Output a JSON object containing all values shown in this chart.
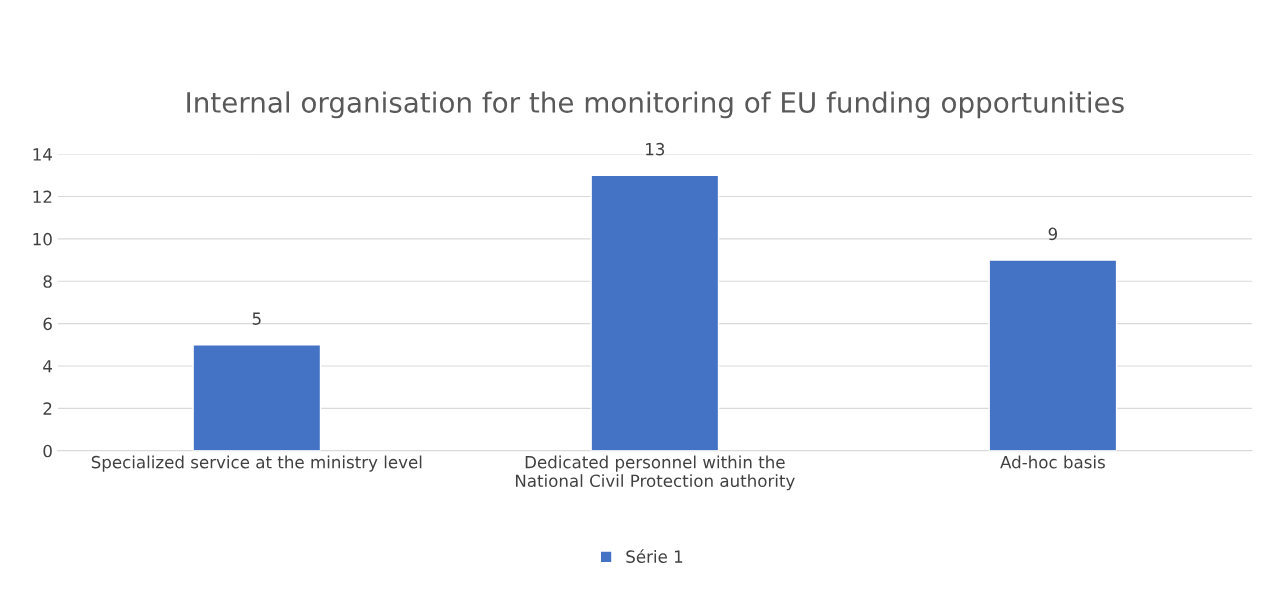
{
  "chart_data": {
    "type": "bar",
    "title": "Internal organisation for the monitoring of EU funding opportunities",
    "categories": [
      "Specialized service at the ministry level",
      "Dedicated personnel within the\nNational Civil Protection authority",
      "Ad-hoc basis"
    ],
    "series": [
      {
        "name": "Série 1",
        "color": "#4472c4",
        "values": [
          5,
          13,
          9
        ]
      }
    ],
    "ylim": [
      0,
      14
    ],
    "yticks": [
      0,
      2,
      4,
      6,
      8,
      10,
      12,
      14
    ],
    "grid": "y",
    "legend": "bottom",
    "data_labels": true
  }
}
